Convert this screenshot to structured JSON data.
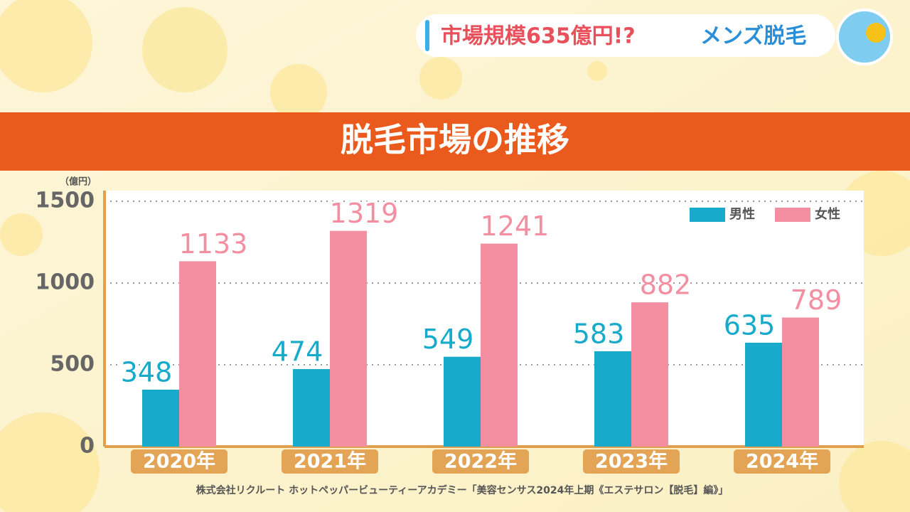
{
  "header": {
    "title": "市場規模635億円!?",
    "subtitle": "メンズ脱毛"
  },
  "source": "株式会社リクルート ホットペッパービューティーアカデミー「美容センサス2024年上期《エステサロン【脱毛】編》」",
  "chart_data": {
    "type": "bar",
    "title": "脱毛市場の推移",
    "ylabel": "（億円）",
    "categories": [
      "2020年",
      "2021年",
      "2022年",
      "2023年",
      "2024年"
    ],
    "series": [
      {
        "name": "男性",
        "color": "#18aacb",
        "values": [
          348,
          474,
          549,
          583,
          635
        ]
      },
      {
        "name": "女性",
        "color": "#f48ea1",
        "values": [
          1133,
          1319,
          1241,
          882,
          789
        ]
      }
    ],
    "ylim": [
      0,
      1500
    ],
    "yticks": [
      0,
      500,
      1000,
      1500
    ],
    "grid": true,
    "legend": "upper right"
  }
}
